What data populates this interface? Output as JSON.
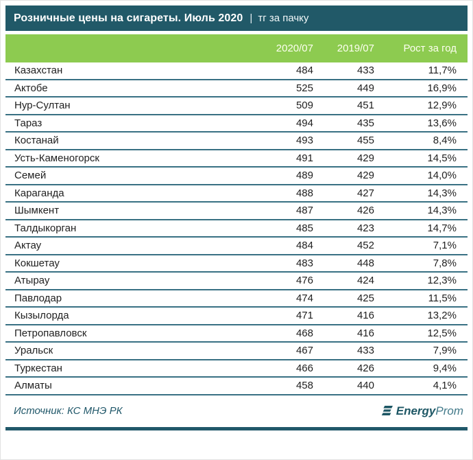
{
  "colors": {
    "banner_bg": "#215968",
    "banner_text": "#ffffff",
    "header_bg": "#8dcb50",
    "header_text": "#fdfff0",
    "row_border": "#387083",
    "row_text": "#1f1f1f",
    "accent_teal": "#21586a",
    "logo_dark": "#1e5765",
    "logo_light": "#437a8a"
  },
  "banner": {
    "title": "Розничные цены на сигареты. Июль 2020",
    "separator": "|",
    "unit": "тг за пачку"
  },
  "chart_data": {
    "type": "table",
    "title": "Розничные цены на сигареты. Июль 2020",
    "unit": "тг за пачку",
    "columns": [
      "2020/07",
      "2019/07",
      "Рост за год"
    ],
    "rows": [
      {
        "region": "Казахстан",
        "price_2020": "484",
        "price_2019": "433",
        "growth": "11,7%"
      },
      {
        "region": "Актобе",
        "price_2020": "525",
        "price_2019": "449",
        "growth": "16,9%"
      },
      {
        "region": "Нур-Султан",
        "price_2020": "509",
        "price_2019": "451",
        "growth": "12,9%"
      },
      {
        "region": "Тараз",
        "price_2020": "494",
        "price_2019": "435",
        "growth": "13,6%"
      },
      {
        "region": "Костанай",
        "price_2020": "493",
        "price_2019": "455",
        "growth": "8,4%"
      },
      {
        "region": "Усть-Каменогорск",
        "price_2020": "491",
        "price_2019": "429",
        "growth": "14,5%"
      },
      {
        "region": "Семей",
        "price_2020": "489",
        "price_2019": "429",
        "growth": "14,0%"
      },
      {
        "region": "Караганда",
        "price_2020": "488",
        "price_2019": "427",
        "growth": "14,3%"
      },
      {
        "region": "Шымкент",
        "price_2020": "487",
        "price_2019": "426",
        "growth": "14,3%"
      },
      {
        "region": "Талдыкорган",
        "price_2020": "485",
        "price_2019": "423",
        "growth": "14,7%"
      },
      {
        "region": "Актау",
        "price_2020": "484",
        "price_2019": "452",
        "growth": "7,1%"
      },
      {
        "region": "Кокшетау",
        "price_2020": "483",
        "price_2019": "448",
        "growth": "7,8%"
      },
      {
        "region": "Атырау",
        "price_2020": "476",
        "price_2019": "424",
        "growth": "12,3%"
      },
      {
        "region": "Павлодар",
        "price_2020": "474",
        "price_2019": "425",
        "growth": "11,5%"
      },
      {
        "region": "Кызылорда",
        "price_2020": "471",
        "price_2019": "416",
        "growth": "13,2%"
      },
      {
        "region": "Петропавловск",
        "price_2020": "468",
        "price_2019": "416",
        "growth": "12,5%"
      },
      {
        "region": "Уральск",
        "price_2020": "467",
        "price_2019": "433",
        "growth": "7,9%"
      },
      {
        "region": "Туркестан",
        "price_2020": "466",
        "price_2019": "426",
        "growth": "9,4%"
      },
      {
        "region": "Алматы",
        "price_2020": "458",
        "price_2019": "440",
        "growth": "4,1%"
      }
    ]
  },
  "footer": {
    "source": "Источник: КС МНЭ РК",
    "logo_bold": "Energy",
    "logo_light": "Prom"
  }
}
